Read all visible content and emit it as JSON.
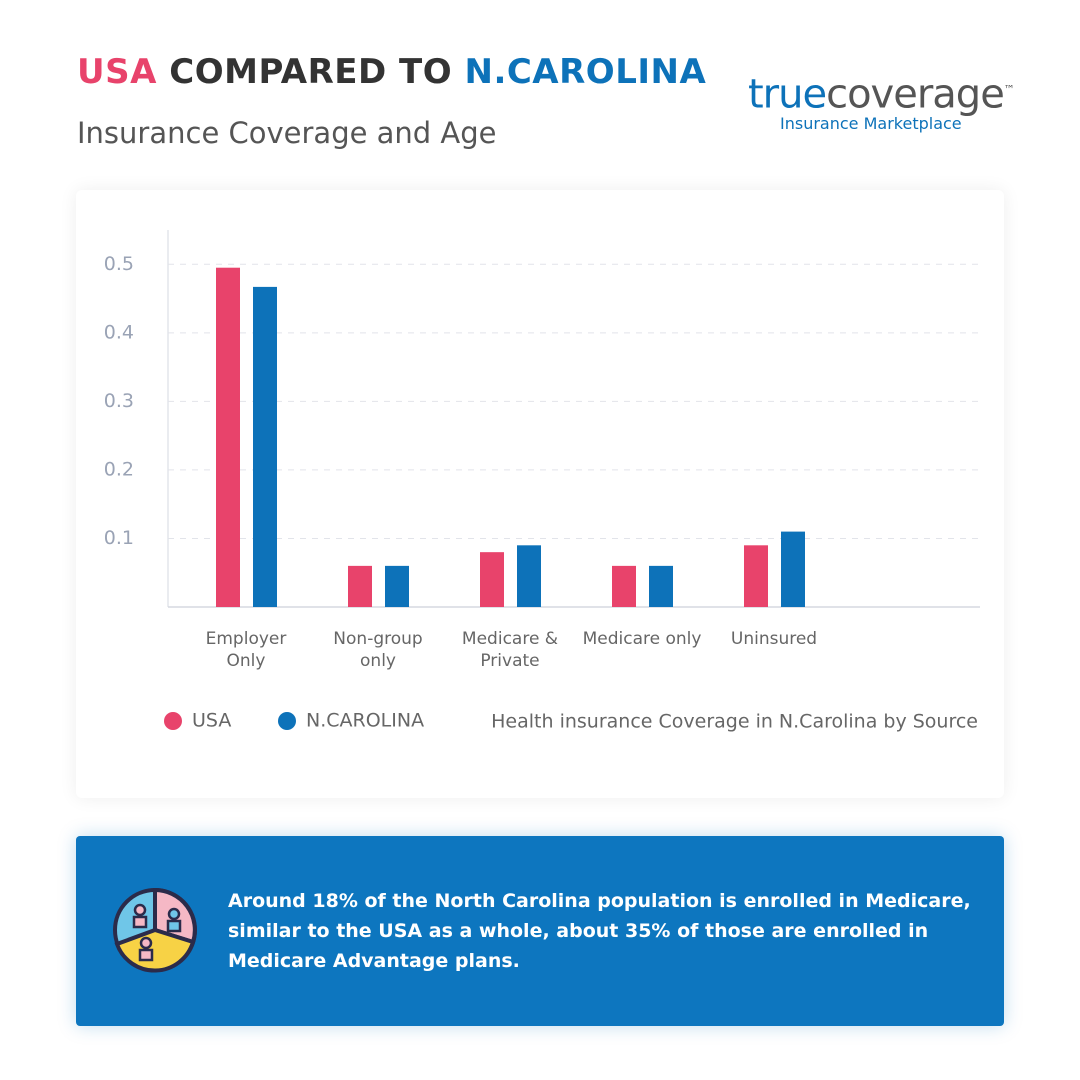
{
  "header": {
    "title_usa": "USA",
    "title_mid": "COMPARED TO",
    "title_nc": "N.CAROLINA",
    "subtitle": "Insurance Coverage and Age"
  },
  "logo": {
    "true": "true",
    "coverage": "coverage",
    "tm": "™",
    "tagline": "Insurance Marketplace"
  },
  "chart_data": {
    "type": "bar",
    "categories": [
      "Employer Only",
      "Non-group only",
      "Medicare & Private",
      "Medicare only",
      "Uninsured"
    ],
    "series": [
      {
        "name": "USA",
        "color": "#e8436b",
        "values": [
          0.495,
          0.06,
          0.08,
          0.06,
          0.09
        ]
      },
      {
        "name": "N.CAROLINA",
        "color": "#0d72b9",
        "values": [
          0.467,
          0.06,
          0.09,
          0.06,
          0.11
        ]
      }
    ],
    "ylim": [
      0,
      0.55
    ],
    "yticks": [
      0.1,
      0.2,
      0.3,
      0.4,
      0.5
    ],
    "grid": true,
    "caption": "Health insurance Coverage in N.Carolina by Source"
  },
  "note": "Around 18% of the North Carolina population is enrolled in Medicare, similar to the USA as a whole, about 35% of those are enrolled in Medicare Advantage plans."
}
